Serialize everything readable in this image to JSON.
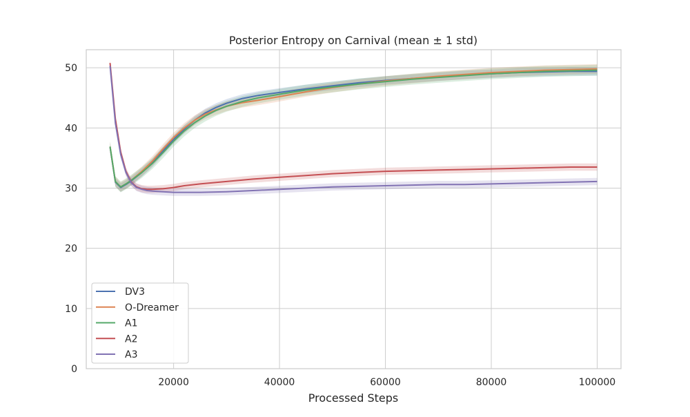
{
  "chart_data": {
    "type": "line",
    "title": "Posterior Entropy on Carnival (mean ± 1 std)",
    "xlabel": "Processed Steps",
    "ylabel": "",
    "xlim": [
      3500,
      104500
    ],
    "ylim": [
      0,
      53
    ],
    "xticks": [
      20000,
      40000,
      60000,
      80000,
      100000
    ],
    "yticks": [
      0,
      10,
      20,
      30,
      40,
      50
    ],
    "grid": true,
    "legend_position": "lower-left",
    "series": [
      {
        "name": "DV3",
        "color": "#4c72b0",
        "std": 0.7,
        "x": [
          8000,
          9000,
          10000,
          11000,
          12000,
          14000,
          16000,
          18000,
          20000,
          22000,
          24000,
          26000,
          28000,
          30000,
          33000,
          36000,
          40000,
          45000,
          50000,
          55000,
          60000,
          65000,
          70000,
          75000,
          80000,
          85000,
          90000,
          95000,
          100000
        ],
        "y": [
          36.8,
          31.0,
          30.1,
          30.6,
          31.2,
          32.6,
          34.2,
          36.2,
          38.1,
          39.8,
          41.3,
          42.5,
          43.4,
          44.1,
          44.9,
          45.4,
          45.9,
          46.5,
          47.0,
          47.5,
          47.9,
          48.2,
          48.5,
          48.8,
          49.0,
          49.2,
          49.3,
          49.4,
          49.4
        ]
      },
      {
        "name": "O-Dreamer",
        "color": "#dd8452",
        "std": 0.8,
        "x": [
          8000,
          9000,
          10000,
          11000,
          12000,
          14000,
          16000,
          18000,
          20000,
          22000,
          24000,
          26000,
          28000,
          30000,
          33000,
          36000,
          40000,
          45000,
          50000,
          55000,
          60000,
          65000,
          70000,
          75000,
          80000,
          85000,
          90000,
          95000,
          100000
        ],
        "y": [
          36.9,
          31.1,
          30.2,
          30.7,
          31.3,
          32.8,
          34.5,
          36.5,
          38.4,
          40.0,
          41.3,
          42.3,
          43.0,
          43.6,
          44.2,
          44.6,
          45.2,
          46.0,
          46.7,
          47.3,
          47.8,
          48.2,
          48.6,
          48.9,
          49.2,
          49.4,
          49.6,
          49.7,
          49.8
        ]
      },
      {
        "name": "A1",
        "color": "#55a868",
        "std": 0.9,
        "x": [
          8000,
          9000,
          10000,
          11000,
          12000,
          14000,
          16000,
          18000,
          20000,
          22000,
          24000,
          26000,
          28000,
          30000,
          33000,
          36000,
          40000,
          45000,
          50000,
          55000,
          60000,
          65000,
          70000,
          75000,
          80000,
          85000,
          90000,
          95000,
          100000
        ],
        "y": [
          36.9,
          31.1,
          30.2,
          30.7,
          31.3,
          32.6,
          34.1,
          35.9,
          37.8,
          39.5,
          40.9,
          42.0,
          42.9,
          43.6,
          44.4,
          45.0,
          45.6,
          46.3,
          46.8,
          47.3,
          47.7,
          48.1,
          48.4,
          48.7,
          49.0,
          49.2,
          49.4,
          49.5,
          49.6
        ]
      },
      {
        "name": "A2",
        "color": "#c44e52",
        "std": 0.6,
        "x": [
          8000,
          9000,
          10000,
          11000,
          12000,
          13000,
          14000,
          15000,
          16000,
          18000,
          20000,
          22000,
          25000,
          30000,
          35000,
          40000,
          45000,
          50000,
          55000,
          60000,
          65000,
          70000,
          75000,
          80000,
          85000,
          90000,
          95000,
          100000
        ],
        "y": [
          50.8,
          41.5,
          36.0,
          32.8,
          31.0,
          30.2,
          29.9,
          29.8,
          29.8,
          29.9,
          30.1,
          30.4,
          30.7,
          31.1,
          31.5,
          31.8,
          32.1,
          32.4,
          32.6,
          32.8,
          32.9,
          33.0,
          33.1,
          33.2,
          33.3,
          33.4,
          33.5,
          33.5
        ]
      },
      {
        "name": "A3",
        "color": "#8172b3",
        "std": 0.6,
        "x": [
          8000,
          9000,
          10000,
          11000,
          12000,
          13000,
          14000,
          15000,
          16000,
          18000,
          20000,
          22000,
          25000,
          30000,
          35000,
          40000,
          45000,
          50000,
          55000,
          60000,
          65000,
          70000,
          75000,
          80000,
          85000,
          90000,
          95000,
          100000
        ],
        "y": [
          50.3,
          40.8,
          35.6,
          32.6,
          30.9,
          30.1,
          29.8,
          29.6,
          29.5,
          29.4,
          29.3,
          29.3,
          29.3,
          29.4,
          29.6,
          29.8,
          30.0,
          30.2,
          30.3,
          30.4,
          30.5,
          30.6,
          30.6,
          30.7,
          30.8,
          30.9,
          31.0,
          31.1
        ]
      }
    ]
  }
}
